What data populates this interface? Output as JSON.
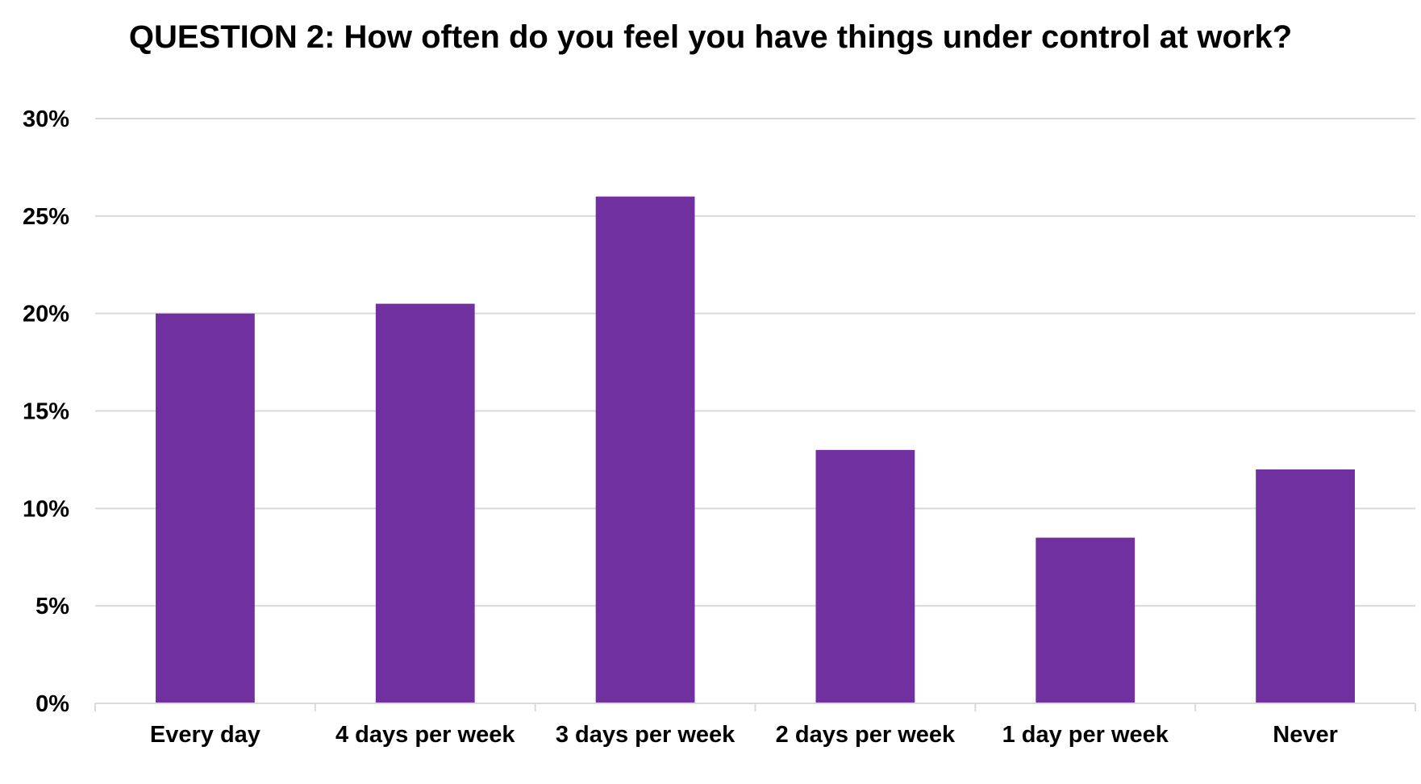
{
  "chart_data": {
    "type": "bar",
    "title": "QUESTION 2: How often do you feel you have things under control at work?",
    "xlabel": "",
    "ylabel": "",
    "categories": [
      "Every day",
      "4 days per week",
      "3 days per week",
      "2 days per week",
      "1 day per week",
      "Never"
    ],
    "values": [
      20,
      20.5,
      26,
      13,
      8.5,
      12
    ],
    "value_unit": "percent",
    "ylim": [
      0,
      30
    ],
    "yticks": [
      0,
      5,
      10,
      15,
      20,
      25,
      30
    ],
    "ytick_labels": [
      "0%",
      "5%",
      "10%",
      "15%",
      "20%",
      "25%",
      "30%"
    ],
    "grid": true,
    "legend": "none",
    "colors": {
      "bar": "#7030A0",
      "grid": "#D9D9D9",
      "axis": "#D9D9D9",
      "text": "#000000"
    }
  }
}
